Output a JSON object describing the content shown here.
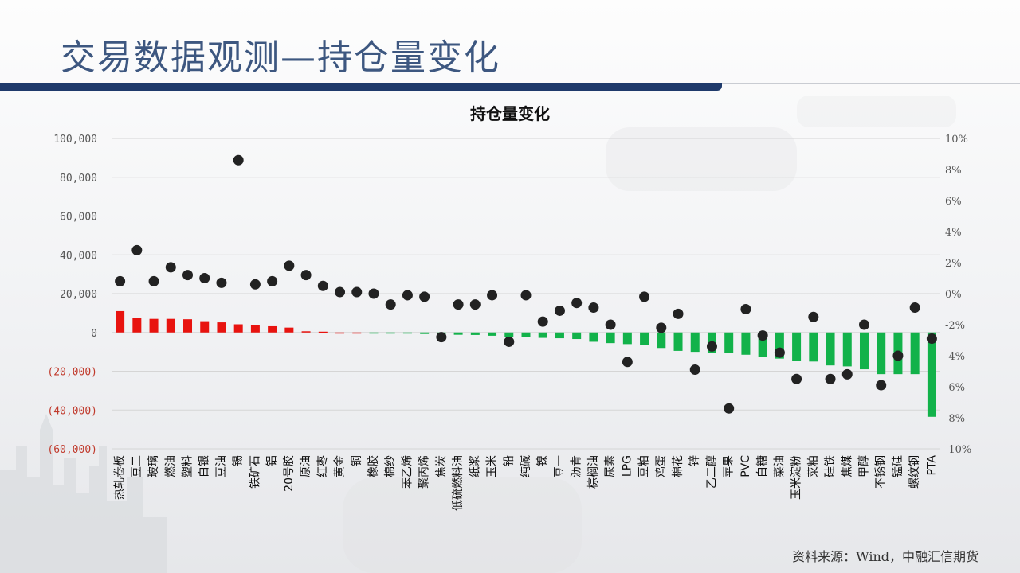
{
  "slide": {
    "title": "交易数据观测—持仓量变化",
    "source": "资料来源：Wind，中融汇信期货"
  },
  "colors": {
    "positive_bar": "#e8130f",
    "negative_bar": "#12b24a",
    "point": "#222222",
    "negative_tick_text": "#c0392b",
    "title_bar": "#1f3a6b"
  },
  "chart_data": {
    "type": "bar",
    "title": "持仓量变化",
    "categories": [
      "热轧卷板",
      "豆二",
      "玻璃",
      "燃油",
      "塑料",
      "白银",
      "豆油",
      "锡",
      "铁矿石",
      "铝",
      "20号胶",
      "原油",
      "红枣",
      "黄金",
      "铜",
      "橡胶",
      "棉纱",
      "苯乙烯",
      "聚丙烯",
      "焦炭",
      "低硫燃料油",
      "纸浆",
      "玉米",
      "铅",
      "纯碱",
      "镍",
      "豆一",
      "沥青",
      "棕榈油",
      "尿素",
      "LPG",
      "豆粕",
      "鸡蛋",
      "棉花",
      "锌",
      "乙二醇",
      "苹果",
      "PVC",
      "白糖",
      "菜油",
      "玉米淀粉",
      "菜粕",
      "硅铁",
      "焦煤",
      "甲醇",
      "不锈钢",
      "锰硅",
      "螺纹钢",
      "PTA"
    ],
    "series": [
      {
        "axis": "left",
        "mark": "bar",
        "values": [
          11000,
          7500,
          7000,
          7000,
          6800,
          5800,
          5200,
          4200,
          4000,
          3200,
          2500,
          600,
          400,
          0,
          0,
          -300,
          -400,
          -600,
          -800,
          -1000,
          -1200,
          -1300,
          -1700,
          -2200,
          -2500,
          -2800,
          -3000,
          -3400,
          -4800,
          -5500,
          -6000,
          -6500,
          -8000,
          -9500,
          -10000,
          -10500,
          -10500,
          -11500,
          -12500,
          -13500,
          -14500,
          -15000,
          -17000,
          -17500,
          -19000,
          -21500,
          -21500,
          -21500,
          -43500
        ]
      },
      {
        "axis": "right",
        "mark": "point",
        "values": [
          0.8,
          2.8,
          0.8,
          1.7,
          1.2,
          1.0,
          0.7,
          8.6,
          0.6,
          0.8,
          1.8,
          1.2,
          0.5,
          0.1,
          0.1,
          0.0,
          -0.7,
          -0.1,
          -0.2,
          -2.8,
          -0.7,
          -0.7,
          -0.1,
          -3.1,
          -0.1,
          -1.8,
          -1.1,
          -0.6,
          -0.9,
          -2.0,
          -4.4,
          -0.2,
          -2.2,
          -1.3,
          -4.9,
          -3.4,
          -7.4,
          -1.0,
          -2.7,
          -3.8,
          -5.5,
          -1.5,
          -5.5,
          -5.2,
          -2.0,
          -5.9,
          -4.0,
          -0.9,
          -2.9
        ]
      }
    ],
    "left_axis": {
      "min": -60000,
      "max": 100000,
      "step": 20000,
      "ticks": [
        "100,000",
        "80,000",
        "60,000",
        "40,000",
        "20,000",
        "0",
        "(20,000)",
        "(40,000)",
        "(60,000)"
      ]
    },
    "right_axis": {
      "min": -10,
      "max": 10,
      "step": 2,
      "ticks": [
        "10%",
        "8%",
        "6%",
        "4%",
        "2%",
        "0%",
        "-2%",
        "-4%",
        "-6%",
        "-8%",
        "-10%"
      ]
    },
    "grid": true,
    "legend": "none"
  }
}
